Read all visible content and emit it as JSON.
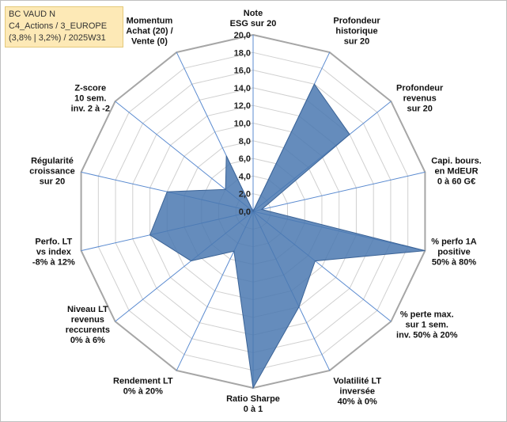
{
  "info_box": {
    "line1": "BC VAUD N",
    "line2": "C4_Actions / 3_EUROPE",
    "line3": "(3,8% | 3,2%) / 2025W31"
  },
  "chart_data": {
    "type": "radar",
    "rmin": 0,
    "rmax": 20,
    "ticks": [
      "0,0",
      "2,0",
      "4,0",
      "6,0",
      "8,0",
      "10,0",
      "12,0",
      "14,0",
      "16,0",
      "18,0",
      "20,0"
    ],
    "grid": true,
    "fill_color": "#4a78b0",
    "series": [
      {
        "values": [
          0,
          16,
          14,
          1,
          20,
          9,
          12,
          20,
          5,
          9,
          12,
          10,
          4,
          7
        ]
      }
    ],
    "categories": [
      [
        "Note",
        "ESG sur 20"
      ],
      [
        "Profondeur",
        "historique",
        "sur 20"
      ],
      [
        "Profondeur",
        "revenus",
        "sur 20"
      ],
      [
        "Capi. bours.",
        "en MdEUR",
        "0 à 60 G€"
      ],
      [
        "% perfo 1A",
        "positive",
        "50% à 80%"
      ],
      [
        "% perte max.",
        "sur 1 sem.",
        "inv. 50% à 20%"
      ],
      [
        "Volatilité LT",
        "inversée",
        "40% à 0%"
      ],
      [
        "Ratio Sharpe",
        "0 à 1"
      ],
      [
        "Rendement LT",
        "0% à 20%"
      ],
      [
        "Niveau LT",
        "revenus",
        "reccurents",
        "0% à 6%"
      ],
      [
        "Perfo. LT",
        "vs index",
        "-8% à 12%"
      ],
      [
        "Régularité",
        "croissance",
        "sur 20"
      ],
      [
        "Z-score",
        "10 sem.",
        "inv. 2 à -2"
      ],
      [
        "Momentum",
        "Achat (20) /",
        "Vente (0)"
      ]
    ]
  }
}
